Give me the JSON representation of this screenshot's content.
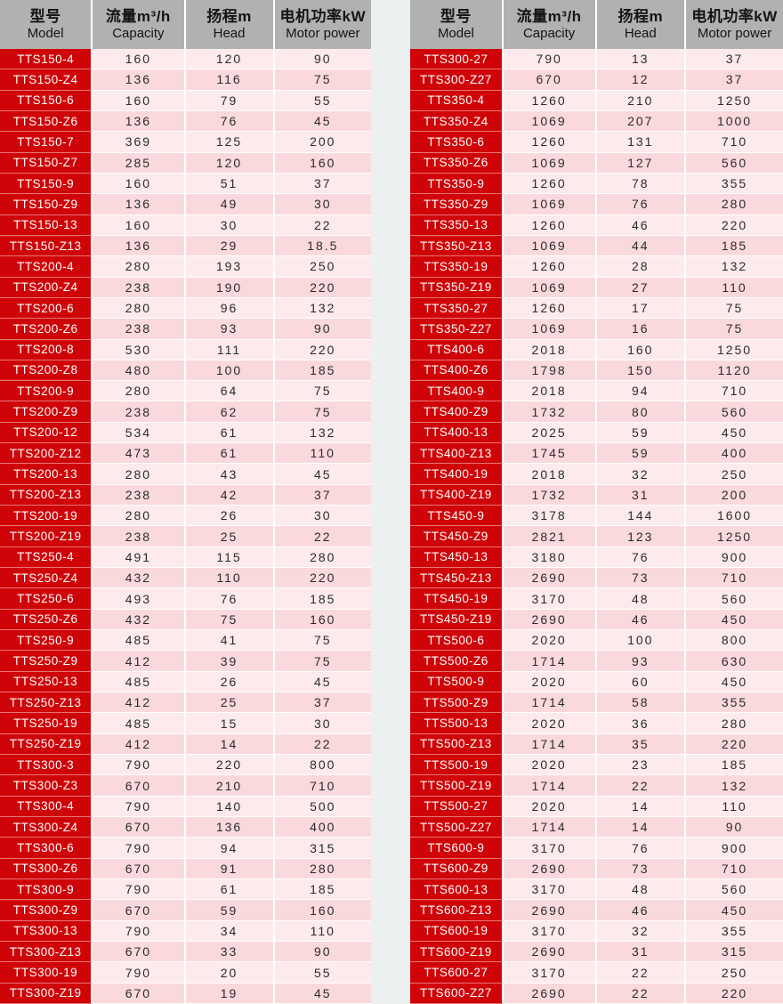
{
  "columns": [
    {
      "zh": "型号",
      "en": "Model"
    },
    {
      "zh": "流量m³/h",
      "en": "Capacity"
    },
    {
      "zh": "扬程m",
      "en": "Head"
    },
    {
      "zh": "电机功率kW",
      "en": "Motor power"
    }
  ],
  "colors": {
    "header_bg": "#b1b1b1",
    "model_cell_bg": "#cf0408",
    "row_odd_bg": "#fdeaec",
    "row_even_bg": "#fad9dc",
    "page_bg": "#edf0f0",
    "number_text": "#2b2b2b",
    "model_text": "#ffffff"
  },
  "tables": [
    {
      "id": "left",
      "rows": [
        {
          "model": "TTS150-4",
          "capacity": "160",
          "head": "120",
          "power": "90"
        },
        {
          "model": "TTS150-Z4",
          "capacity": "136",
          "head": "116",
          "power": "75"
        },
        {
          "model": "TTS150-6",
          "capacity": "160",
          "head": "79",
          "power": "55"
        },
        {
          "model": "TTS150-Z6",
          "capacity": "136",
          "head": "76",
          "power": "45"
        },
        {
          "model": "TTS150-7",
          "capacity": "369",
          "head": "125",
          "power": "200"
        },
        {
          "model": "TTS150-Z7",
          "capacity": "285",
          "head": "120",
          "power": "160"
        },
        {
          "model": "TTS150-9",
          "capacity": "160",
          "head": "51",
          "power": "37"
        },
        {
          "model": "TTS150-Z9",
          "capacity": "136",
          "head": "49",
          "power": "30"
        },
        {
          "model": "TTS150-13",
          "capacity": "160",
          "head": "30",
          "power": "22"
        },
        {
          "model": "TTS150-Z13",
          "capacity": "136",
          "head": "29",
          "power": "18.5"
        },
        {
          "model": "TTS200-4",
          "capacity": "280",
          "head": "193",
          "power": "250"
        },
        {
          "model": "TTS200-Z4",
          "capacity": "238",
          "head": "190",
          "power": "220"
        },
        {
          "model": "TTS200-6",
          "capacity": "280",
          "head": "96",
          "power": "132"
        },
        {
          "model": "TTS200-Z6",
          "capacity": "238",
          "head": "93",
          "power": "90"
        },
        {
          "model": "TTS200-8",
          "capacity": "530",
          "head": "111",
          "power": "220"
        },
        {
          "model": "TTS200-Z8",
          "capacity": "480",
          "head": "100",
          "power": "185"
        },
        {
          "model": "TTS200-9",
          "capacity": "280",
          "head": "64",
          "power": "75"
        },
        {
          "model": "TTS200-Z9",
          "capacity": "238",
          "head": "62",
          "power": "75"
        },
        {
          "model": "TTS200-12",
          "capacity": "534",
          "head": "61",
          "power": "132"
        },
        {
          "model": "TTS200-Z12",
          "capacity": "473",
          "head": "61",
          "power": "110"
        },
        {
          "model": "TTS200-13",
          "capacity": "280",
          "head": "43",
          "power": "45"
        },
        {
          "model": "TTS200-Z13",
          "capacity": "238",
          "head": "42",
          "power": "37"
        },
        {
          "model": "TTS200-19",
          "capacity": "280",
          "head": "26",
          "power": "30"
        },
        {
          "model": "TTS200-Z19",
          "capacity": "238",
          "head": "25",
          "power": "22"
        },
        {
          "model": "TTS250-4",
          "capacity": "491",
          "head": "115",
          "power": "280"
        },
        {
          "model": "TTS250-Z4",
          "capacity": "432",
          "head": "110",
          "power": "220"
        },
        {
          "model": "TTS250-6",
          "capacity": "493",
          "head": "76",
          "power": "185"
        },
        {
          "model": "TTS250-Z6",
          "capacity": "432",
          "head": "75",
          "power": "160"
        },
        {
          "model": "TTS250-9",
          "capacity": "485",
          "head": "41",
          "power": "75"
        },
        {
          "model": "TTS250-Z9",
          "capacity": "412",
          "head": "39",
          "power": "75"
        },
        {
          "model": "TTS250-13",
          "capacity": "485",
          "head": "26",
          "power": "45"
        },
        {
          "model": "TTS250-Z13",
          "capacity": "412",
          "head": "25",
          "power": "37"
        },
        {
          "model": "TTS250-19",
          "capacity": "485",
          "head": "15",
          "power": "30"
        },
        {
          "model": "TTS250-Z19",
          "capacity": "412",
          "head": "14",
          "power": "22"
        },
        {
          "model": "TTS300-3",
          "capacity": "790",
          "head": "220",
          "power": "800"
        },
        {
          "model": "TTS300-Z3",
          "capacity": "670",
          "head": "210",
          "power": "710"
        },
        {
          "model": "TTS300-4",
          "capacity": "790",
          "head": "140",
          "power": "500"
        },
        {
          "model": "TTS300-Z4",
          "capacity": "670",
          "head": "136",
          "power": "400"
        },
        {
          "model": "TTS300-6",
          "capacity": "790",
          "head": "94",
          "power": "315"
        },
        {
          "model": "TTS300-Z6",
          "capacity": "670",
          "head": "91",
          "power": "280"
        },
        {
          "model": "TTS300-9",
          "capacity": "790",
          "head": "61",
          "power": "185"
        },
        {
          "model": "TTS300-Z9",
          "capacity": "670",
          "head": "59",
          "power": "160"
        },
        {
          "model": "TTS300-13",
          "capacity": "790",
          "head": "34",
          "power": "110"
        },
        {
          "model": "TTS300-Z13",
          "capacity": "670",
          "head": "33",
          "power": "90"
        },
        {
          "model": "TTS300-19",
          "capacity": "790",
          "head": "20",
          "power": "55"
        },
        {
          "model": "TTS300-Z19",
          "capacity": "670",
          "head": "19",
          "power": "45"
        }
      ]
    },
    {
      "id": "right",
      "rows": [
        {
          "model": "TTS300-27",
          "capacity": "790",
          "head": "13",
          "power": "37"
        },
        {
          "model": "TTS300-Z27",
          "capacity": "670",
          "head": "12",
          "power": "37"
        },
        {
          "model": "TTS350-4",
          "capacity": "1260",
          "head": "210",
          "power": "1250"
        },
        {
          "model": "TTS350-Z4",
          "capacity": "1069",
          "head": "207",
          "power": "1000"
        },
        {
          "model": "TTS350-6",
          "capacity": "1260",
          "head": "131",
          "power": "710"
        },
        {
          "model": "TTS350-Z6",
          "capacity": "1069",
          "head": "127",
          "power": "560"
        },
        {
          "model": "TTS350-9",
          "capacity": "1260",
          "head": "78",
          "power": "355"
        },
        {
          "model": "TTS350-Z9",
          "capacity": "1069",
          "head": "76",
          "power": "280"
        },
        {
          "model": "TTS350-13",
          "capacity": "1260",
          "head": "46",
          "power": "220"
        },
        {
          "model": "TTS350-Z13",
          "capacity": "1069",
          "head": "44",
          "power": "185"
        },
        {
          "model": "TTS350-19",
          "capacity": "1260",
          "head": "28",
          "power": "132"
        },
        {
          "model": "TTS350-Z19",
          "capacity": "1069",
          "head": "27",
          "power": "110"
        },
        {
          "model": "TTS350-27",
          "capacity": "1260",
          "head": "17",
          "power": "75"
        },
        {
          "model": "TTS350-Z27",
          "capacity": "1069",
          "head": "16",
          "power": "75"
        },
        {
          "model": "TTS400-6",
          "capacity": "2018",
          "head": "160",
          "power": "1250"
        },
        {
          "model": "TTS400-Z6",
          "capacity": "1798",
          "head": "150",
          "power": "1120"
        },
        {
          "model": "TTS400-9",
          "capacity": "2018",
          "head": "94",
          "power": "710"
        },
        {
          "model": "TTS400-Z9",
          "capacity": "1732",
          "head": "80",
          "power": "560"
        },
        {
          "model": "TTS400-13",
          "capacity": "2025",
          "head": "59",
          "power": "450"
        },
        {
          "model": "TTS400-Z13",
          "capacity": "1745",
          "head": "59",
          "power": "400"
        },
        {
          "model": "TTS400-19",
          "capacity": "2018",
          "head": "32",
          "power": "250"
        },
        {
          "model": "TTS400-Z19",
          "capacity": "1732",
          "head": "31",
          "power": "200"
        },
        {
          "model": "TTS450-9",
          "capacity": "3178",
          "head": "144",
          "power": "1600"
        },
        {
          "model": "TTS450-Z9",
          "capacity": "2821",
          "head": "123",
          "power": "1250"
        },
        {
          "model": "TTS450-13",
          "capacity": "3180",
          "head": "76",
          "power": "900"
        },
        {
          "model": "TTS450-Z13",
          "capacity": "2690",
          "head": "73",
          "power": "710"
        },
        {
          "model": "TTS450-19",
          "capacity": "3170",
          "head": "48",
          "power": "560"
        },
        {
          "model": "TTS450-Z19",
          "capacity": "2690",
          "head": "46",
          "power": "450"
        },
        {
          "model": "TTS500-6",
          "capacity": "2020",
          "head": "100",
          "power": "800"
        },
        {
          "model": "TTS500-Z6",
          "capacity": "1714",
          "head": "93",
          "power": "630"
        },
        {
          "model": "TTS500-9",
          "capacity": "2020",
          "head": "60",
          "power": "450"
        },
        {
          "model": "TTS500-Z9",
          "capacity": "1714",
          "head": "58",
          "power": "355"
        },
        {
          "model": "TTS500-13",
          "capacity": "2020",
          "head": "36",
          "power": "280"
        },
        {
          "model": "TTS500-Z13",
          "capacity": "1714",
          "head": "35",
          "power": "220"
        },
        {
          "model": "TTS500-19",
          "capacity": "2020",
          "head": "23",
          "power": "185"
        },
        {
          "model": "TTS500-Z19",
          "capacity": "1714",
          "head": "22",
          "power": "132"
        },
        {
          "model": "TTS500-27",
          "capacity": "2020",
          "head": "14",
          "power": "110"
        },
        {
          "model": "TTS500-Z27",
          "capacity": "1714",
          "head": "14",
          "power": "90"
        },
        {
          "model": "TTS600-9",
          "capacity": "3170",
          "head": "76",
          "power": "900"
        },
        {
          "model": "TTS600-Z9",
          "capacity": "2690",
          "head": "73",
          "power": "710"
        },
        {
          "model": "TTS600-13",
          "capacity": "3170",
          "head": "48",
          "power": "560"
        },
        {
          "model": "TTS600-Z13",
          "capacity": "2690",
          "head": "46",
          "power": "450"
        },
        {
          "model": "TTS600-19",
          "capacity": "3170",
          "head": "32",
          "power": "355"
        },
        {
          "model": "TTS600-Z19",
          "capacity": "2690",
          "head": "31",
          "power": "315"
        },
        {
          "model": "TTS600-27",
          "capacity": "3170",
          "head": "22",
          "power": "250"
        },
        {
          "model": "TTS600-Z27",
          "capacity": "2690",
          "head": "22",
          "power": "220"
        }
      ]
    }
  ]
}
